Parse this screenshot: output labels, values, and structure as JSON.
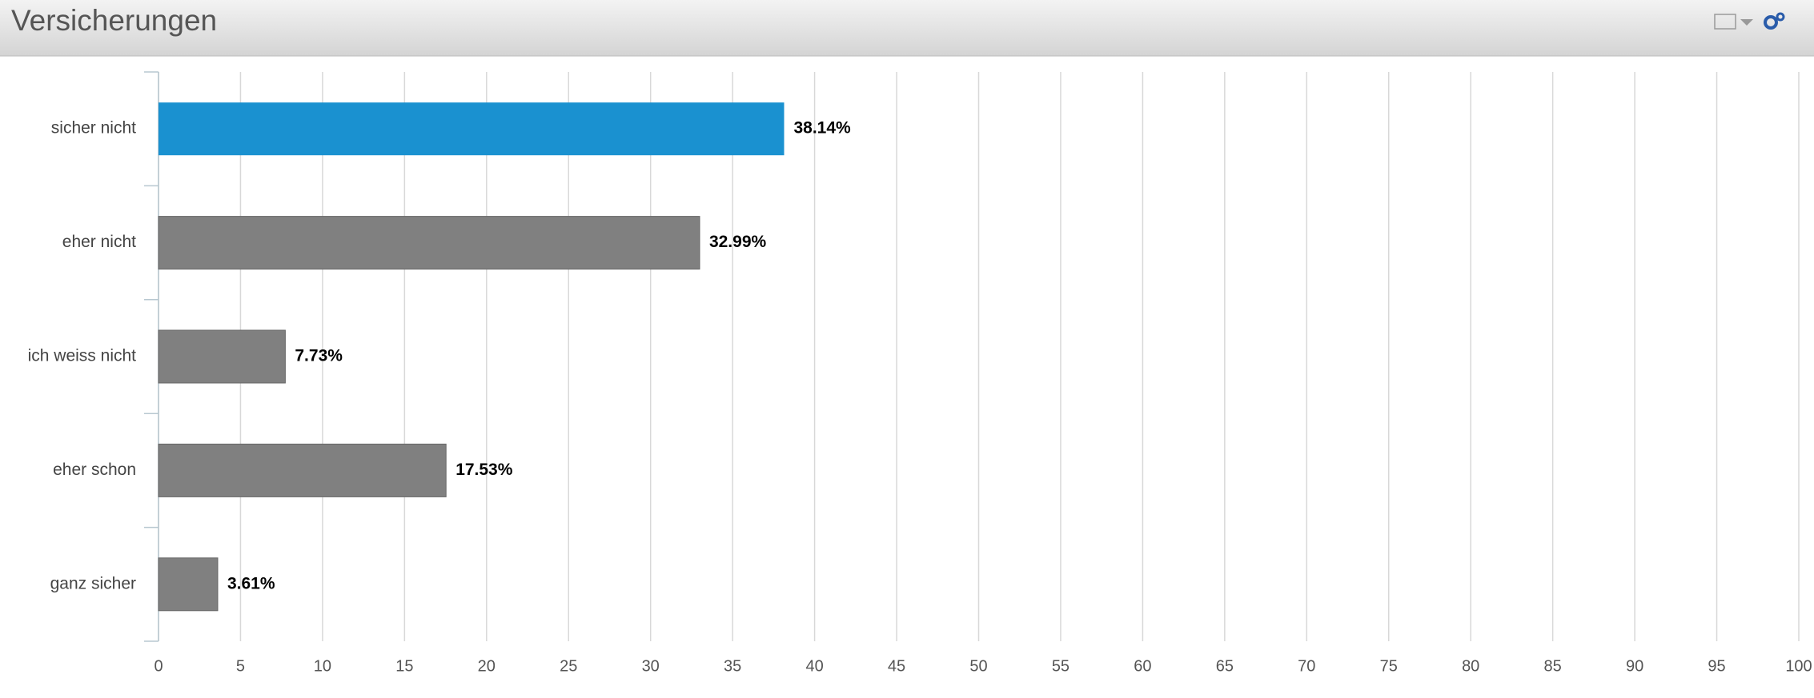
{
  "chart_data": {
    "type": "bar",
    "orientation": "horizontal",
    "title": "Versicherungen",
    "categories": [
      "sicher nicht",
      "eher nicht",
      "ich weiss nicht",
      "eher schon",
      "ganz sicher"
    ],
    "values": [
      38.14,
      32.99,
      7.73,
      17.53,
      3.61
    ],
    "value_labels": [
      "38.14%",
      "32.99%",
      "7.73%",
      "17.53%",
      "3.61%"
    ],
    "colors": [
      "#1a91d0",
      "#808080",
      "#808080",
      "#808080",
      "#808080"
    ],
    "xlim": [
      0,
      100
    ],
    "xticks": [
      0,
      5,
      10,
      15,
      20,
      25,
      30,
      35,
      40,
      45,
      50,
      55,
      60,
      65,
      70,
      75,
      80,
      85,
      90,
      95,
      100
    ],
    "grid": true
  }
}
